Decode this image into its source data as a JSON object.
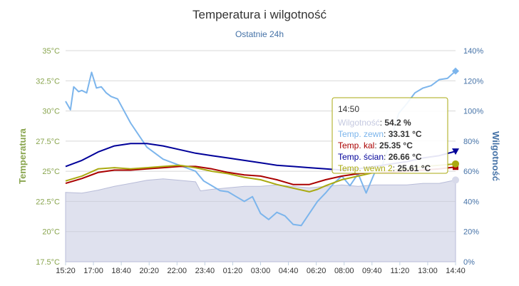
{
  "chart_data": {
    "type": "line",
    "title": "Temperatura i wilgotność",
    "subtitle": "Ostatnie 24h",
    "y_left": {
      "label": "Temperatura",
      "range": [
        17.5,
        35
      ],
      "ticks": [
        "17.5°C",
        "20°C",
        "22.5°C",
        "25°C",
        "27.5°C",
        "30°C",
        "32.5°C",
        "35°C"
      ],
      "color": "#89A54E"
    },
    "y_right": {
      "label": "Wilgotność",
      "range": [
        0,
        140
      ],
      "ticks": [
        "0%",
        "20%",
        "40%",
        "60%",
        "80%",
        "100%",
        "120%",
        "140%"
      ],
      "color": "#4572A7"
    },
    "x_range": [
      0,
      24
    ],
    "x_ticks": [
      "15:20",
      "17:00",
      "18:40",
      "20:20",
      "22:00",
      "23:40",
      "01:20",
      "03:00",
      "04:40",
      "06:20",
      "08:00",
      "09:40",
      "11:20",
      "13:00",
      "14:40"
    ],
    "grid": true,
    "series": [
      {
        "name": "Wilgotność",
        "axis": "right",
        "style": "area",
        "color": "#C5C9E0",
        "x": [
          0,
          1,
          2,
          3,
          4,
          5,
          6,
          7,
          8,
          8.3,
          9,
          10,
          11,
          12,
          13,
          14,
          15,
          16,
          17,
          18,
          19,
          20,
          21,
          22,
          23,
          24
        ],
        "values": [
          46,
          45.5,
          47.5,
          50,
          52,
          54,
          55,
          54,
          53,
          47,
          48,
          49,
          50,
          50,
          51,
          50,
          49,
          50,
          51,
          50,
          51,
          51,
          51,
          52,
          52,
          54.2
        ]
      },
      {
        "name": "Temp. zewn",
        "axis": "left",
        "color": "#7CB5EC",
        "x": [
          0,
          0.3,
          0.5,
          0.8,
          1,
          1.3,
          1.6,
          1.9,
          2.2,
          2.5,
          2.8,
          3.2,
          4,
          5,
          6,
          7,
          8,
          8.5,
          9,
          9.5,
          10,
          10.5,
          11,
          11.5,
          12,
          12.5,
          13,
          13.5,
          14,
          14.5,
          15,
          15.5,
          16,
          16.5,
          17,
          17.5,
          18,
          18.5,
          19,
          19.5,
          20,
          20.5,
          21,
          21.5,
          22,
          22.5,
          23,
          23.5,
          24
        ],
        "values": [
          30.8,
          30.1,
          32,
          31.6,
          31.7,
          31.5,
          33.2,
          31.9,
          32,
          31.5,
          31.2,
          31,
          29,
          27,
          26,
          25.5,
          25,
          24.2,
          23.8,
          23.4,
          23.3,
          22.9,
          22.5,
          22.9,
          21.5,
          21,
          21.6,
          21.3,
          20.6,
          20.5,
          21.5,
          22.5,
          23.2,
          24,
          24.6,
          23.8,
          24.8,
          23.2,
          24.8,
          25.5,
          27.5,
          29.8,
          30.6,
          31.5,
          31.9,
          32.1,
          32.6,
          32.7,
          33.31
        ]
      },
      {
        "name": "Temp. kal",
        "axis": "left",
        "color": "#AA0000",
        "x": [
          0,
          1,
          2,
          3,
          4,
          5,
          6,
          7,
          8,
          9,
          10,
          11,
          12,
          13,
          14,
          15,
          16,
          17,
          18,
          19,
          20,
          21,
          22,
          23,
          24
        ],
        "values": [
          24,
          24.4,
          24.9,
          25.1,
          25.1,
          25.2,
          25.3,
          25.4,
          25.4,
          25.2,
          24.9,
          24.7,
          24.6,
          24.3,
          23.9,
          23.9,
          24.3,
          24.6,
          24.8,
          24.9,
          24.9,
          25,
          25.1,
          25.2,
          25.35
        ]
      },
      {
        "name": "Temp. ścian",
        "axis": "left",
        "color": "#000099",
        "x": [
          0,
          1,
          2,
          3,
          4,
          5,
          6,
          7,
          8,
          9,
          10,
          11,
          12,
          13,
          14,
          15,
          16,
          17,
          18,
          19,
          20,
          21,
          22,
          23,
          24
        ],
        "values": [
          25.4,
          25.9,
          26.6,
          27.1,
          27.3,
          27.3,
          27.1,
          26.8,
          26.5,
          26.3,
          26.1,
          25.9,
          25.7,
          25.5,
          25.4,
          25.3,
          25.2,
          25.1,
          25.2,
          25.4,
          25.6,
          25.8,
          26.1,
          26.3,
          26.66
        ]
      },
      {
        "name": "Temp. wewn 2",
        "axis": "left",
        "color": "#AAAA11",
        "x": [
          0,
          1,
          2,
          3,
          4,
          5,
          6,
          7,
          8,
          9,
          10,
          11,
          12,
          13,
          14,
          15,
          15.5,
          16,
          17,
          18,
          19,
          20,
          21,
          22,
          23,
          24
        ],
        "values": [
          24.2,
          24.6,
          25.2,
          25.3,
          25.2,
          25.3,
          25.4,
          25.5,
          25.3,
          25,
          24.8,
          24.5,
          24.3,
          23.9,
          23.6,
          23.3,
          23.5,
          23.8,
          24.3,
          24.6,
          24.9,
          25.1,
          25.2,
          25.4,
          25.5,
          25.61
        ]
      }
    ],
    "tooltip": {
      "time": "14:50",
      "rows": [
        {
          "series": "Wilgotność",
          "value": "54.2 %",
          "color": "#C5C9E0"
        },
        {
          "series": "Temp. zewn",
          "value": "33.31 °C",
          "color": "#7CB5EC"
        },
        {
          "series": "Temp. kal",
          "value": "25.35 °C",
          "color": "#AA0000"
        },
        {
          "series": "Temp. ścian",
          "value": "26.66 °C",
          "color": "#000099"
        },
        {
          "series": "Temp. wewn 2",
          "value": "25.61 °C",
          "color": "#AAAA11"
        }
      ]
    }
  }
}
